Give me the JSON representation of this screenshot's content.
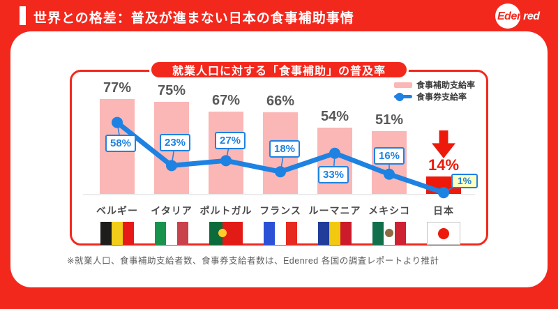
{
  "header": {
    "title": "世界との格差：普及が進まない日本の食事補助事情",
    "logo_part1": "Eden",
    "logo_part2": "red"
  },
  "chart": {
    "title": "就業人口に対する「食事補助」の普及率",
    "legend": {
      "bar": "食事補助支給率",
      "line": "食事券支給率"
    }
  },
  "chart_data": {
    "type": "bar",
    "title": "就業人口に対する「食事補助」の普及率",
    "categories": [
      "ベルギー",
      "イタリア",
      "ポルトガル",
      "フランス",
      "ルーマニア",
      "メキシコ",
      "日本"
    ],
    "category_ids": [
      "belgium",
      "italy",
      "portugal",
      "france",
      "romania",
      "mexico",
      "japan"
    ],
    "series": [
      {
        "name": "食事補助支給率",
        "type": "bar",
        "unit": "%",
        "values": [
          77,
          75,
          67,
          66,
          54,
          51,
          14
        ]
      },
      {
        "name": "食事券支給率",
        "type": "line",
        "unit": "%",
        "values": [
          58,
          23,
          27,
          18,
          33,
          16,
          1
        ]
      }
    ],
    "ylim": [
      0,
      100
    ],
    "grid": false,
    "legend_position": "top-right",
    "annotations": [
      {
        "type": "down-arrow",
        "target": "日本"
      },
      {
        "type": "highlighted-label",
        "target": "日本",
        "value": "1%"
      }
    ],
    "flags": [
      {
        "id": "belgium",
        "kind": "vstripes",
        "stripes": [
          [
            "#1D1D1B",
            33.4
          ],
          [
            "#F2CE1B",
            33.3
          ],
          [
            "#E81A17",
            33.3
          ]
        ]
      },
      {
        "id": "italy",
        "kind": "vstripes",
        "stripes": [
          [
            "#17934D",
            33.4
          ],
          [
            "#FFFFFF",
            33.3
          ],
          [
            "#C8414B",
            33.3
          ]
        ]
      },
      {
        "id": "portugal",
        "kind": "vstripes",
        "stripes": [
          [
            "#0B6B3A",
            40
          ],
          [
            "#E31B17",
            60
          ]
        ],
        "emblem": "#FFCC29"
      },
      {
        "id": "france",
        "kind": "vstripes",
        "stripes": [
          [
            "#2B51D6",
            33.4
          ],
          [
            "#FFFFFF",
            33.3
          ],
          [
            "#E72A20",
            33.3
          ]
        ]
      },
      {
        "id": "romania",
        "kind": "vstripes",
        "stripes": [
          [
            "#1F3D99",
            33.4
          ],
          [
            "#F3C90F",
            33.3
          ],
          [
            "#CC1B2B",
            33.3
          ]
        ]
      },
      {
        "id": "mexico",
        "kind": "vstripes",
        "stripes": [
          [
            "#11704B",
            33.4
          ],
          [
            "#FFFFFF",
            33.3
          ],
          [
            "#CE2132",
            33.3
          ]
        ],
        "emblem": "#8B6B43"
      },
      {
        "id": "japan",
        "kind": "japan",
        "stripes": [
          [
            "#FFFFFF",
            100
          ]
        ],
        "emblem": "#ED1A0B"
      }
    ],
    "colors": {
      "bar": "#FBB6B6",
      "bar_highlight": "#ED1A0B",
      "line": "#1E82E2",
      "value_label": "#595959",
      "highlight_text": "#ED1A0B",
      "background_red": "#F3281D"
    }
  },
  "footnote": "※就業人口、食事補助支給者数、食事券支給者数は、Edenred 各国の調査レポートより推計"
}
